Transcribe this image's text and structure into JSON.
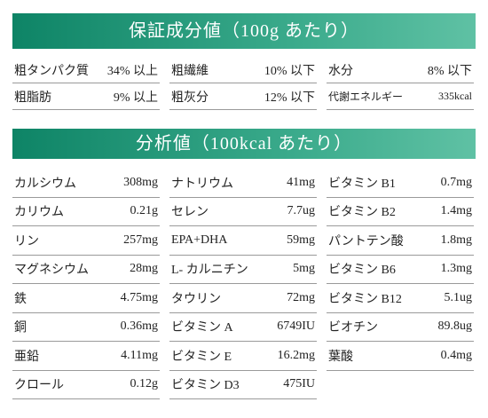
{
  "sections": {
    "guarantee_title": "保証成分値（100g あたり）",
    "analysis_title": "分析値（100kcal あたり）"
  },
  "guarantee": [
    [
      {
        "label": "粗タンパク質",
        "value": "34% 以上"
      },
      {
        "label": "粗繊維",
        "value": "10% 以下"
      },
      {
        "label": "水分",
        "value": "8% 以下"
      }
    ],
    [
      {
        "label": "粗脂肪",
        "value": "9% 以上"
      },
      {
        "label": "粗灰分",
        "value": "12% 以下"
      },
      {
        "label": "代謝エネルギー",
        "value": "335kcal"
      }
    ]
  ],
  "analysis": [
    [
      {
        "label": "カルシウム",
        "value": "308mg"
      },
      {
        "label": "ナトリウム",
        "value": "41mg"
      },
      {
        "label": "ビタミン B1",
        "value": "0.7mg"
      }
    ],
    [
      {
        "label": "カリウム",
        "value": "0.21g"
      },
      {
        "label": "セレン",
        "value": "7.7ug"
      },
      {
        "label": "ビタミン B2",
        "value": "1.4mg"
      }
    ],
    [
      {
        "label": "リン",
        "value": "257mg"
      },
      {
        "label": "EPA+DHA",
        "value": "59mg"
      },
      {
        "label": "パントテン酸",
        "value": "1.8mg"
      }
    ],
    [
      {
        "label": "マグネシウム",
        "value": "28mg"
      },
      {
        "label": "L- カルニチン",
        "value": "5mg"
      },
      {
        "label": "ビタミン B6",
        "value": "1.3mg"
      }
    ],
    [
      {
        "label": "鉄",
        "value": "4.75mg"
      },
      {
        "label": "タウリン",
        "value": "72mg"
      },
      {
        "label": "ビタミン B12",
        "value": "5.1ug"
      }
    ],
    [
      {
        "label": "銅",
        "value": "0.36mg"
      },
      {
        "label": "ビタミン A",
        "value": "6749IU"
      },
      {
        "label": "ビオチン",
        "value": "89.8ug"
      }
    ],
    [
      {
        "label": "亜鉛",
        "value": "4.11mg"
      },
      {
        "label": "ビタミン E",
        "value": "16.2mg"
      },
      {
        "label": "葉酸",
        "value": "0.4mg"
      }
    ],
    [
      {
        "label": "クロール",
        "value": "0.12g"
      },
      {
        "label": "ビタミン D3",
        "value": "475IU"
      }
    ]
  ]
}
